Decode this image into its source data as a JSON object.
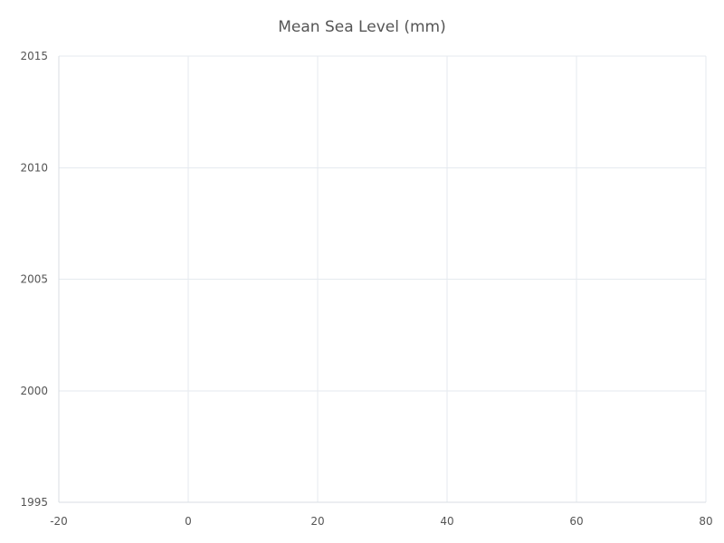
{
  "chart_data": {
    "type": "scatter",
    "title": "Mean Sea Level (mm)",
    "xlabel": "",
    "ylabel": "",
    "xlim": [
      -20,
      80
    ],
    "ylim": [
      1995,
      2015
    ],
    "x_ticks": [
      -20,
      0,
      20,
      40,
      60,
      80
    ],
    "y_ticks": [
      1995,
      2000,
      2005,
      2010,
      2015
    ],
    "grid": true,
    "series": []
  },
  "colors": {
    "grid": "#e5eaef",
    "axis": "#d8dde3",
    "text": "#555555"
  }
}
